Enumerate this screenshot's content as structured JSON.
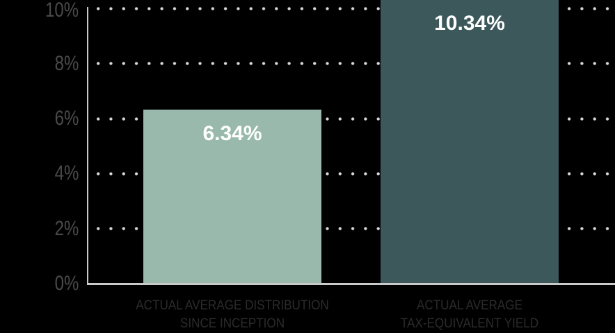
{
  "chart_data": {
    "type": "bar",
    "title": "",
    "categories": [
      [
        "ACTUAL AVERAGE DISTRIBUTION",
        "SINCE INCEPTION"
      ],
      [
        "ACTUAL AVERAGE",
        "TAX-EQUIVALENT YIELD"
      ]
    ],
    "values": [
      6.34,
      10.34
    ],
    "bar_labels": [
      "6.34%",
      "10.34%"
    ],
    "bar_colors": [
      "#98b9ac",
      "#3c585b"
    ],
    "y_tick_values": [
      0,
      2,
      4,
      6,
      8,
      10
    ],
    "y_tick_labels": [
      "0%",
      "2%",
      "4%",
      "6%",
      "8%",
      "10%"
    ],
    "ylim": [
      0,
      10
    ],
    "xlabel": "",
    "ylabel": "",
    "grid": "dotted horizontal gridlines",
    "legend": "none",
    "note": "second bar value exceeds axis maximum and is clipped at top of plot"
  },
  "colors": {
    "background": "#000000",
    "axis_line": "#c9c9c9",
    "y_tick_text": "#4a4a4a",
    "x_label_text": "#2b2b2b",
    "grid_dot": "#d9d9d9",
    "bar_label_text": "#ffffff",
    "bar_distribution": "#98b9ac",
    "bar_tax_equivalent": "#3c585b"
  }
}
